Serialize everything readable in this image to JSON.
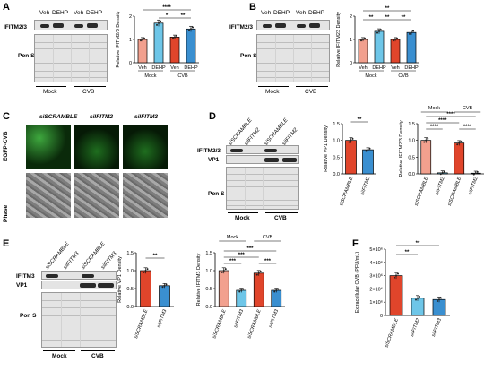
{
  "panels": {
    "A": {
      "label": "A",
      "protein": "IFITM2/3",
      "stain": "Pon S",
      "lanes": [
        "Veh",
        "DEHP",
        "Veh",
        "DEHP"
      ],
      "groups": [
        "Mock",
        "CVB"
      ]
    },
    "B": {
      "label": "B",
      "protein": "IFITM2/3",
      "stain": "Pon S",
      "lanes": [
        "Veh",
        "DEHP",
        "Veh",
        "DEHP"
      ],
      "groups": [
        "Mock",
        "CVB"
      ]
    },
    "C": {
      "label": "C",
      "columns": [
        "siSCRAMBLE",
        "siIFITM2",
        "siIFITM3"
      ],
      "rows": [
        "EGFP-CVB",
        "Phase"
      ]
    },
    "D": {
      "label": "D",
      "proteins": [
        "IFITM2/3",
        "VP1"
      ],
      "stain": "Pon S",
      "lanes": [
        "siSCRAMBLE",
        "siIFITM2",
        "siSCRAMBLE",
        "siIFITM2"
      ],
      "groups": [
        "Mock",
        "CVB"
      ]
    },
    "E": {
      "label": "E",
      "proteins": [
        "IFITM3",
        "VP1"
      ],
      "stain": "Pon S",
      "lanes": [
        "siSCRAMBLE",
        "siIFITM3",
        "siSCRAMBLE",
        "siIFITM3"
      ],
      "groups": [
        "Mock",
        "CVB"
      ]
    },
    "F": {
      "label": "F"
    }
  },
  "colors": {
    "salmon": "#f2a08e",
    "cyan": "#6ec6e8",
    "red": "#e0452b",
    "blue": "#3a8fd0"
  },
  "chart_data": [
    {
      "id": "A",
      "type": "bar",
      "categories": [
        "Veh",
        "DEHP",
        "Veh",
        "DEHP"
      ],
      "groups": [
        "Mock",
        "CVB"
      ],
      "values": [
        1.0,
        1.7,
        1.1,
        1.45
      ],
      "colors": [
        "#f2a08e",
        "#6ec6e8",
        "#e0452b",
        "#3a8fd0"
      ],
      "ylabel": "Relative IFITM2/3 Density",
      "ylim": [
        0,
        2
      ],
      "yticks": [
        "0",
        "1",
        "2"
      ],
      "sig": [
        "*",
        "**",
        "****"
      ]
    },
    {
      "id": "B",
      "type": "bar",
      "categories": [
        "Veh",
        "DEHP",
        "Veh",
        "DEHP"
      ],
      "groups": [
        "Mock",
        "CVB"
      ],
      "values": [
        1.0,
        1.35,
        1.0,
        1.3
      ],
      "colors": [
        "#f2a08e",
        "#6ec6e8",
        "#e0452b",
        "#3a8fd0"
      ],
      "ylabel": "Relative IFITM23 Density",
      "ylim": [
        0,
        2
      ],
      "yticks": [
        "0",
        "1",
        "2"
      ],
      "sig": [
        "**",
        "**",
        "**",
        "**"
      ]
    },
    {
      "id": "D1",
      "type": "bar",
      "categories": [
        "siSCRAMBLE",
        "siIFITM2"
      ],
      "values": [
        1.0,
        0.72
      ],
      "colors": [
        "#e0452b",
        "#3a8fd0"
      ],
      "ylabel": "Relative VP1 Density",
      "ylim": [
        0,
        1.5
      ],
      "yticks": [
        "0.0",
        "0.5",
        "1.0",
        "1.5"
      ],
      "sig": [
        "**"
      ]
    },
    {
      "id": "D2",
      "type": "bar",
      "categories": [
        "siSCRAMBLE",
        "siIFITM2",
        "siSCRAMBLE",
        "siIFITM2"
      ],
      "groups": [
        "Mock",
        "CVB"
      ],
      "values": [
        1.0,
        0.03,
        0.92,
        0.02
      ],
      "colors": [
        "#f2a08e",
        "#6ec6e8",
        "#e0452b",
        "#3a8fd0"
      ],
      "ylabel": "Relative IFITM2/3 Density",
      "ylim": [
        0,
        1.5
      ],
      "yticks": [
        "0.0",
        "0.5",
        "1.0",
        "1.5"
      ],
      "sig": [
        "****",
        "****",
        "****",
        "****"
      ]
    },
    {
      "id": "E1",
      "type": "bar",
      "categories": [
        "siSCRAMBLE",
        "siIFITM3"
      ],
      "values": [
        1.0,
        0.58
      ],
      "colors": [
        "#e0452b",
        "#3a8fd0"
      ],
      "ylabel": "Relative VP1 Density",
      "ylim": [
        0,
        1.5
      ],
      "yticks": [
        "0.0",
        "0.5",
        "1.0",
        "1.5"
      ],
      "sig": [
        "**"
      ]
    },
    {
      "id": "E2",
      "type": "bar",
      "categories": [
        "siSCRAMBLE",
        "siIFITM3",
        "siSCRAMBLE",
        "siIFITM3"
      ],
      "groups": [
        "Mock",
        "CVB"
      ],
      "values": [
        1.0,
        0.45,
        0.93,
        0.45
      ],
      "colors": [
        "#f2a08e",
        "#6ec6e8",
        "#e0452b",
        "#3a8fd0"
      ],
      "ylabel": "Relative IFITM3 Density",
      "ylim": [
        0,
        1.5
      ],
      "yticks": [
        "0.0",
        "0.5",
        "1.0",
        "1.5"
      ],
      "sig": [
        "***",
        "***",
        "***",
        "***"
      ]
    },
    {
      "id": "F",
      "type": "bar",
      "categories": [
        "siSCRAMBLE",
        "siIFITM2",
        "siIFITM3"
      ],
      "values": [
        3000000,
        1300000,
        1200000
      ],
      "colors": [
        "#e0452b",
        "#6ec6e8",
        "#3a8fd0"
      ],
      "ylabel": "Extracellular CVB (PFU/mL)",
      "ylim": [
        0,
        5000000
      ],
      "yticks": [
        "0",
        "1×10⁶",
        "2×10⁶",
        "3×10⁶",
        "4×10⁶",
        "5×10⁶"
      ],
      "sig": [
        "**",
        "**"
      ]
    }
  ]
}
